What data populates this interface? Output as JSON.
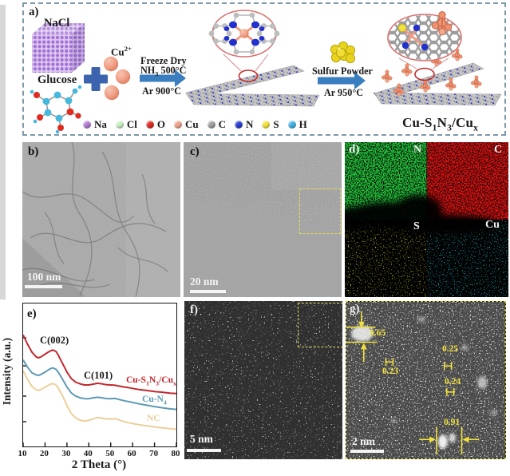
{
  "panel_a": {
    "label": "a)",
    "nacl_label": "NaCl",
    "glucose_label": "Glucose",
    "cu_ion": {
      "base": "Cu",
      "sup": "2+"
    },
    "step1": {
      "line1": "Freeze Dry",
      "nh_base": "NH",
      "nh_sub": "3",
      "nh_rest": " 500°C",
      "below": "Ar 900°C"
    },
    "step2": {
      "line1": "Sulfur Powder",
      "below": "Ar 950°C"
    },
    "product": {
      "t1": "Cu-S",
      "b1": "1",
      "t2": "N",
      "b2": "3",
      "t3": "/Cu",
      "b3": "x"
    },
    "legend": {
      "items": [
        {
          "label": "Na",
          "color": "#b57bd5"
        },
        {
          "label": "Cl",
          "color": "#c9f0c4"
        },
        {
          "label": "O",
          "color": "#e02b20"
        },
        {
          "label": "Cu",
          "color": "#efa28b"
        },
        {
          "label": "C",
          "color": "#a0a0a0"
        },
        {
          "label": "N",
          "color": "#2b3fd0"
        },
        {
          "label": "S",
          "color": "#f2e33c"
        },
        {
          "label": "H",
          "color": "#3fb3e6"
        }
      ]
    }
  },
  "panel_b": {
    "label": "b)",
    "scalebar": "100 nm"
  },
  "panel_c": {
    "label": "c)",
    "scalebar": "20 nm"
  },
  "panel_d": {
    "label": "d)",
    "maps": [
      {
        "element": "N",
        "color": "#25c83e"
      },
      {
        "element": "C",
        "color": "#e21212"
      },
      {
        "element": "S",
        "color": "#dfd33c"
      },
      {
        "element": "Cu",
        "color": "#30c6d8"
      }
    ]
  },
  "panel_e": {
    "label": "e)"
  },
  "panel_f": {
    "label": "f)",
    "scalebar": "5 nm"
  },
  "panel_g": {
    "label": "g)",
    "scalebar": "2 nm",
    "measurements": [
      "0.65",
      "0.23",
      "0.25",
      "0.24",
      "0.91"
    ]
  },
  "chart_data": {
    "type": "line",
    "title": "",
    "xlabel": "2 Theta (°)",
    "ylabel": "Intensity (a.u.)",
    "xlim": [
      10,
      80
    ],
    "ylim_au": [
      0,
      100
    ],
    "xticks": [
      10,
      20,
      30,
      40,
      50,
      60,
      70,
      80
    ],
    "grid": false,
    "legend_position": "inline-right",
    "annotations": [
      {
        "text": "C(002)",
        "x": 23
      },
      {
        "text": "C(101)",
        "x": 43
      }
    ],
    "series": [
      {
        "name": "Cu-S1N3/Cux",
        "color": "#c1272d",
        "label_parts": {
          "t1": "Cu-S",
          "b1": "1",
          "t2": "N",
          "b2": "3",
          "t3": "/Cu",
          "b3": "x"
        },
        "points": [
          [
            10,
            78
          ],
          [
            12,
            71.5
          ],
          [
            14,
            66
          ],
          [
            16,
            62.5
          ],
          [
            17,
            62
          ],
          [
            18,
            62.5
          ],
          [
            20,
            64.5
          ],
          [
            22,
            66.5
          ],
          [
            23.5,
            67.5
          ],
          [
            25,
            66.5
          ],
          [
            26,
            64
          ],
          [
            28,
            58
          ],
          [
            30,
            52
          ],
          [
            32,
            47.5
          ],
          [
            34,
            45
          ],
          [
            36,
            43.8
          ],
          [
            38,
            43
          ],
          [
            40,
            43
          ],
          [
            42,
            43.6
          ],
          [
            44,
            44.2
          ],
          [
            46,
            43.8
          ],
          [
            48,
            43.2
          ],
          [
            50,
            43
          ],
          [
            52,
            42.8
          ],
          [
            54,
            42.2
          ],
          [
            56,
            41.6
          ],
          [
            58,
            41.2
          ],
          [
            60,
            40.6
          ],
          [
            63,
            39.8
          ],
          [
            66,
            39.2
          ],
          [
            70,
            38.4
          ],
          [
            74,
            37.8
          ],
          [
            77,
            37.3
          ],
          [
            80,
            37
          ]
        ]
      },
      {
        "name": "Cu-N4",
        "color": "#5e9ab5",
        "label_parts": {
          "t1": "Cu-N",
          "b1": "4"
        },
        "points": [
          [
            10,
            60.5
          ],
          [
            12,
            55.5
          ],
          [
            14,
            51.5
          ],
          [
            16,
            50
          ],
          [
            17,
            49.7
          ],
          [
            18,
            50.2
          ],
          [
            20,
            52
          ],
          [
            22,
            54
          ],
          [
            23.5,
            55
          ],
          [
            25,
            54
          ],
          [
            26,
            52
          ],
          [
            28,
            47
          ],
          [
            30,
            41.5
          ],
          [
            32,
            37.5
          ],
          [
            34,
            35.2
          ],
          [
            36,
            34
          ],
          [
            38,
            33.4
          ],
          [
            40,
            33.4
          ],
          [
            42,
            34
          ],
          [
            44,
            34.4
          ],
          [
            46,
            34
          ],
          [
            48,
            33.5
          ],
          [
            50,
            33.4
          ],
          [
            52,
            33.6
          ],
          [
            54,
            32.8
          ],
          [
            56,
            32
          ],
          [
            58,
            31.4
          ],
          [
            60,
            30.8
          ],
          [
            63,
            29.8
          ],
          [
            66,
            29
          ],
          [
            70,
            27.9
          ],
          [
            74,
            26.9
          ],
          [
            77,
            26.3
          ],
          [
            80,
            25.9
          ]
        ]
      },
      {
        "name": "NC",
        "color": "#eccf9a",
        "label_parts": {
          "t1": "NC"
        },
        "points": [
          [
            10,
            53
          ],
          [
            12,
            47
          ],
          [
            14,
            42
          ],
          [
            16,
            39.6
          ],
          [
            17,
            39.2
          ],
          [
            18,
            39.8
          ],
          [
            20,
            41.5
          ],
          [
            22,
            43.2
          ],
          [
            23.5,
            44
          ],
          [
            25,
            43
          ],
          [
            26,
            41
          ],
          [
            28,
            35.5
          ],
          [
            30,
            28.5
          ],
          [
            32,
            23
          ],
          [
            34,
            20
          ],
          [
            36,
            18.4
          ],
          [
            38,
            17.8
          ],
          [
            40,
            18.2
          ],
          [
            42,
            19.2
          ],
          [
            44,
            20.3
          ],
          [
            46,
            19.8
          ],
          [
            48,
            19.2
          ],
          [
            50,
            19.2
          ],
          [
            52,
            19.4
          ],
          [
            54,
            18.4
          ],
          [
            56,
            17.4
          ],
          [
            58,
            16.6
          ],
          [
            60,
            16
          ],
          [
            63,
            15.2
          ],
          [
            66,
            14.5
          ],
          [
            70,
            13.7
          ],
          [
            74,
            12.9
          ],
          [
            77,
            12.4
          ],
          [
            80,
            12
          ]
        ]
      }
    ]
  }
}
